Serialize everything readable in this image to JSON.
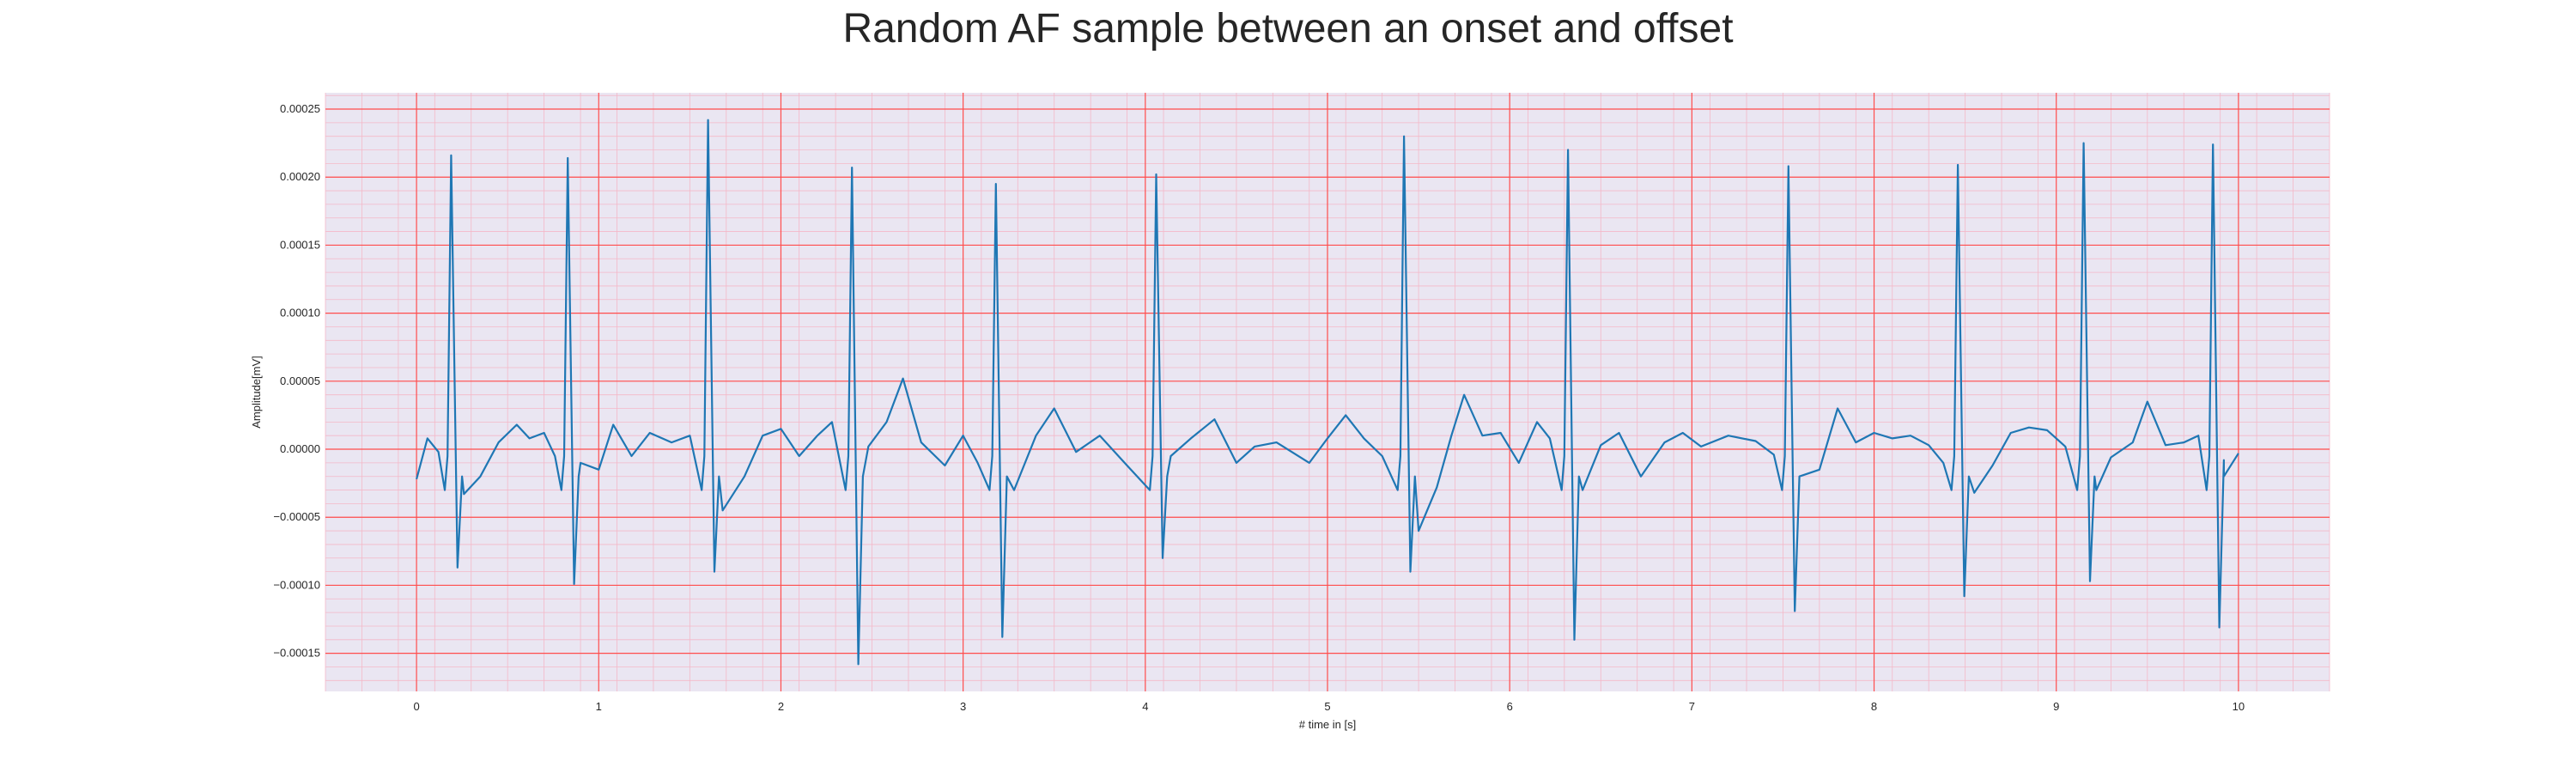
{
  "chart_data": {
    "type": "line",
    "title": "Random AF sample between an onset and offset",
    "xlabel": "# time in [s]",
    "ylabel": "Amplitude[mV]",
    "xlim": [
      -0.5,
      10.5
    ],
    "ylim": [
      -0.000178,
      0.000262
    ],
    "xticks": [
      0,
      1,
      2,
      3,
      4,
      5,
      6,
      7,
      8,
      9,
      10
    ],
    "xtick_labels": [
      "0",
      "1",
      "2",
      "3",
      "4",
      "5",
      "6",
      "7",
      "8",
      "9",
      "10"
    ],
    "yticks": [
      -0.00015,
      -0.0001,
      -5e-05,
      0,
      5e-05,
      0.0001,
      0.00015,
      0.0002,
      0.00025
    ],
    "ytick_labels": [
      "−0.00015",
      "−0.00010",
      "−0.00005",
      "0.00000",
      "0.00005",
      "0.00010",
      "0.00015",
      "0.00020",
      "0.00025"
    ],
    "grid": true,
    "grid_major_color": "#ff4d4d",
    "grid_minor_color": "#f4b8c8",
    "background_color": "#eae6f2",
    "series": [
      {
        "color": "#1f77b4",
        "beats": [
          {
            "t": 0.19,
            "peak": 0.000216,
            "trough": -8.7e-05
          },
          {
            "t": 0.83,
            "peak": 0.000214,
            "trough": -9.9e-05
          },
          {
            "t": 1.6,
            "peak": 0.000242,
            "trough": -9e-05
          },
          {
            "t": 2.39,
            "peak": 0.000207,
            "trough": -0.000158
          },
          {
            "t": 3.18,
            "peak": 0.000195,
            "trough": -0.000138
          },
          {
            "t": 4.06,
            "peak": 0.000202,
            "trough": -8e-05
          },
          {
            "t": 5.42,
            "peak": 0.00023,
            "trough": -9e-05
          },
          {
            "t": 6.32,
            "peak": 0.00022,
            "trough": -0.00014
          },
          {
            "t": 7.53,
            "peak": 0.000208,
            "trough": -0.000119
          },
          {
            "t": 8.46,
            "peak": 0.000209,
            "trough": -0.000108
          },
          {
            "t": 9.15,
            "peak": 0.000225,
            "trough": -9.7e-05
          },
          {
            "t": 9.86,
            "peak": 0.000224,
            "trough": -0.000131
          }
        ],
        "baseline_points": [
          [
            0.0,
            -2.2e-05
          ],
          [
            0.06,
            8e-06
          ],
          [
            0.12,
            -2e-06
          ],
          [
            0.16,
            3e-06
          ],
          [
            0.26,
            -3.3e-05
          ],
          [
            0.35,
            -2e-05
          ],
          [
            0.45,
            5e-06
          ],
          [
            0.55,
            1.8e-05
          ],
          [
            0.62,
            8e-06
          ],
          [
            0.7,
            1.2e-05
          ],
          [
            0.76,
            -5e-06
          ],
          [
            0.9,
            -1e-05
          ],
          [
            1.0,
            -1.5e-05
          ],
          [
            1.08,
            1.8e-05
          ],
          [
            1.18,
            -5e-06
          ],
          [
            1.28,
            1.2e-05
          ],
          [
            1.4,
            5e-06
          ],
          [
            1.5,
            1e-05
          ],
          [
            1.68,
            -4.5e-05
          ],
          [
            1.8,
            -2e-05
          ],
          [
            1.9,
            1e-05
          ],
          [
            2.0,
            1.5e-05
          ],
          [
            2.1,
            -5e-06
          ],
          [
            2.2,
            1e-05
          ],
          [
            2.28,
            2e-05
          ],
          [
            2.48,
            2e-06
          ],
          [
            2.58,
            2e-05
          ],
          [
            2.67,
            5.2e-05
          ],
          [
            2.77,
            5e-06
          ],
          [
            2.9,
            -1.2e-05
          ],
          [
            3.0,
            1e-05
          ],
          [
            3.08,
            -1e-05
          ],
          [
            3.28,
            -3e-05
          ],
          [
            3.4,
            1e-05
          ],
          [
            3.5,
            3e-05
          ],
          [
            3.62,
            -2e-06
          ],
          [
            3.75,
            1e-05
          ],
          [
            3.9,
            -1.2e-05
          ],
          [
            4.14,
            -5e-06
          ],
          [
            4.25,
            8e-06
          ],
          [
            4.38,
            2.2e-05
          ],
          [
            4.5,
            -1e-05
          ],
          [
            4.6,
            2e-06
          ],
          [
            4.72,
            5e-06
          ],
          [
            4.9,
            -1e-05
          ],
          [
            5.0,
            8e-06
          ],
          [
            5.1,
            2.5e-05
          ],
          [
            5.2,
            8e-06
          ],
          [
            5.3,
            -5e-06
          ],
          [
            5.5,
            -6e-05
          ],
          [
            5.6,
            -2.8e-05
          ],
          [
            5.68,
            1e-05
          ],
          [
            5.75,
            4e-05
          ],
          [
            5.85,
            1e-05
          ],
          [
            5.95,
            1.2e-05
          ],
          [
            6.05,
            -1e-05
          ],
          [
            6.15,
            2e-05
          ],
          [
            6.22,
            8e-06
          ],
          [
            6.4,
            -3e-05
          ],
          [
            6.5,
            3e-06
          ],
          [
            6.6,
            1.2e-05
          ],
          [
            6.72,
            -2e-05
          ],
          [
            6.85,
            5e-06
          ],
          [
            6.95,
            1.2e-05
          ],
          [
            7.05,
            2e-06
          ],
          [
            7.2,
            1e-05
          ],
          [
            7.35,
            6e-06
          ],
          [
            7.45,
            -4e-06
          ],
          [
            7.6,
            -2.5e-05
          ],
          [
            7.7,
            -1.5e-05
          ],
          [
            7.8,
            3e-05
          ],
          [
            7.9,
            5e-06
          ],
          [
            8.0,
            1.2e-05
          ],
          [
            8.1,
            8e-06
          ],
          [
            8.2,
            1e-05
          ],
          [
            8.3,
            3e-06
          ],
          [
            8.38,
            -1e-05
          ],
          [
            8.55,
            -3.2e-05
          ],
          [
            8.65,
            -1.2e-05
          ],
          [
            8.75,
            1.2e-05
          ],
          [
            8.85,
            1.6e-05
          ],
          [
            8.95,
            1.4e-05
          ],
          [
            9.05,
            2e-06
          ],
          [
            9.22,
            -3e-05
          ],
          [
            9.3,
            -6e-06
          ],
          [
            9.42,
            5e-06
          ],
          [
            9.5,
            3.5e-05
          ],
          [
            9.6,
            3e-06
          ],
          [
            9.7,
            5e-06
          ],
          [
            9.78,
            1e-05
          ],
          [
            9.92,
            -8e-06
          ],
          [
            10.0,
            -3e-06
          ]
        ]
      }
    ]
  }
}
